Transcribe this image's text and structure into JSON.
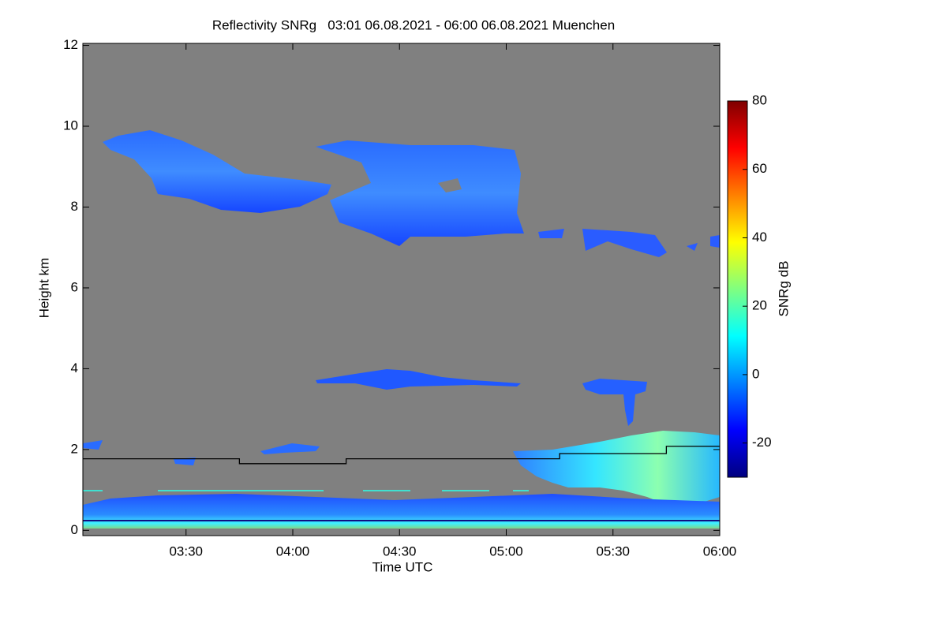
{
  "chart_data": {
    "type": "line",
    "title": "Reflectivity SNRg   03:01 06.08.2021 - 06:00 06.08.2021 Muenchen",
    "xlabel": "Time UTC",
    "ylabel": "Height km",
    "x": [
      "03:01",
      "03:45",
      "03:45",
      "04:15",
      "04:15",
      "05:15",
      "05:15",
      "05:45",
      "05:45",
      "06:00"
    ],
    "values": [
      1.77,
      1.77,
      1.65,
      1.65,
      1.77,
      1.77,
      1.9,
      1.9,
      2.08,
      2.08
    ],
    "color": "#000000",
    "background": "#808080",
    "xlim": [
      "03:01",
      "06:00"
    ],
    "xticks": [
      "03:30",
      "04:00",
      "04:30",
      "05:00",
      "05:30",
      "06:00"
    ],
    "ylim": [
      -0.13,
      12.05
    ],
    "yticks": [
      0,
      2,
      4,
      6,
      8,
      10,
      12
    ],
    "colorbar": {
      "label": "SNRg dB",
      "colormap": "jet",
      "lim": [
        -30,
        80
      ],
      "ticks": [
        -20,
        0,
        20,
        40,
        60,
        80
      ]
    }
  }
}
